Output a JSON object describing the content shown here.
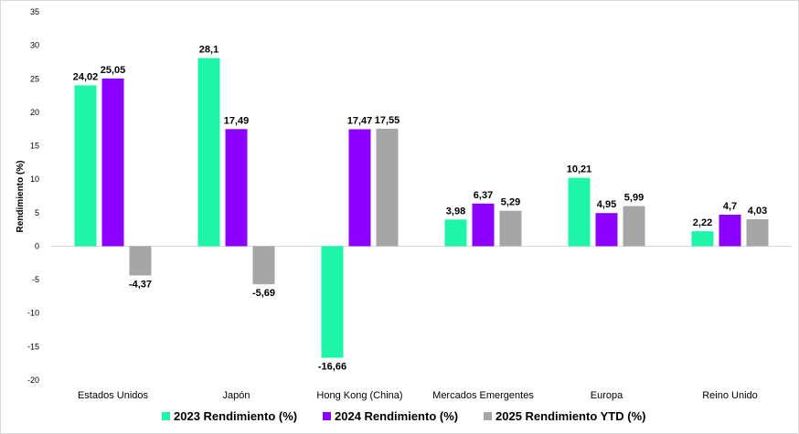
{
  "chart_data": {
    "type": "bar",
    "title": "",
    "xlabel": "",
    "ylabel": "Rendimiento (%)",
    "ylim": [
      -20,
      35
    ],
    "yticks": [
      -20,
      -15,
      -10,
      -5,
      0,
      5,
      10,
      15,
      20,
      25,
      30,
      35
    ],
    "grid": false,
    "legend_position": "bottom",
    "categories": [
      "Estados Unidos",
      "Japón",
      "Hong Kong (China)",
      "Mercados Emergentes",
      "Europa",
      "Reino Unido"
    ],
    "series": [
      {
        "name": "2023 Rendimiento (%)",
        "color": "#1df5a8",
        "values": [
          24.02,
          28.1,
          -16.66,
          3.98,
          10.21,
          2.22
        ],
        "labels": [
          "24,02",
          "28,1",
          "-16,66",
          "3,98",
          "10,21",
          "2,22"
        ]
      },
      {
        "name": "2024 Rendimiento (%)",
        "color": "#8b00ff",
        "values": [
          25.05,
          17.49,
          17.47,
          6.37,
          4.95,
          4.7
        ],
        "labels": [
          "25,05",
          "17,49",
          "17,47",
          "6,37",
          "4,95",
          "4,7"
        ]
      },
      {
        "name": "2025 Rendimiento YTD (%)",
        "color": "#a6a6a6",
        "values": [
          -4.37,
          -5.69,
          17.55,
          5.29,
          5.99,
          4.03
        ],
        "labels": [
          "-4,37",
          "-5,69",
          "17,55",
          "5,29",
          "5,99",
          "4,03"
        ]
      }
    ]
  }
}
